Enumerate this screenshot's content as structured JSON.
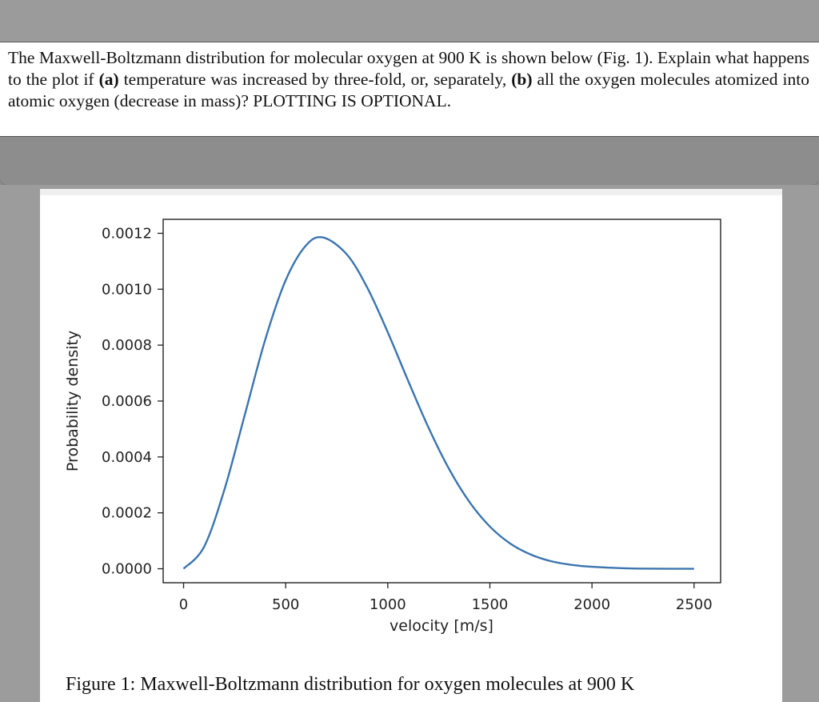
{
  "question": {
    "text_1": "The Maxwell-Boltzmann distribution for molecular oxygen at 900 K is shown below (Fig. 1). Explain what happens to the plot if ",
    "a_label": "(a)",
    "text_2": " temperature was increased by three-fold, or, separately, ",
    "b_label": "(b)",
    "text_3": " all the oxygen molecules atomized into atomic oxygen (decrease in mass)? PLOTTING IS OPTIONAL."
  },
  "figure_caption": "Figure 1: Maxwell-Boltzmann distribution for oxygen molecules at 900 K",
  "chart_data": {
    "type": "line",
    "title": "",
    "xlabel": "velocity [m/s]",
    "ylabel": "Probability density",
    "xlim": [
      -100,
      2630
    ],
    "ylim": [
      -5e-05,
      0.00125
    ],
    "xticks": [
      0,
      500,
      1000,
      1500,
      2000,
      2500
    ],
    "xtick_labels": [
      "0",
      "500",
      "1000",
      "1500",
      "2000",
      "2500"
    ],
    "yticks": [
      0.0,
      0.0002,
      0.0004,
      0.0006,
      0.0008,
      0.001,
      0.0012
    ],
    "ytick_labels": [
      "0.0000",
      "0.0002",
      "0.0004",
      "0.0006",
      "0.0008",
      "0.0010",
      "0.0012"
    ],
    "grid": false,
    "line_color": "#3b75af",
    "series": [
      {
        "x": [
          0,
          100,
          200,
          300,
          400,
          500,
          600,
          684,
          800,
          900,
          1000,
          1100,
          1200,
          1300,
          1400,
          1500,
          1600,
          1700,
          1800,
          1900,
          2000,
          2200,
          2500
        ],
        "values": [
          0,
          7.8e-05,
          0.000283,
          0.000551,
          0.00082,
          0.001032,
          0.001157,
          0.001185,
          0.001124,
          0.001005,
          0.000846,
          0.000672,
          0.000504,
          0.000357,
          0.000239,
          0.000151,
          9e-05,
          5.1e-05,
          2.7e-05,
          1.4e-05,
          7e-06,
          1e-06,
          0.0
        ]
      }
    ]
  }
}
